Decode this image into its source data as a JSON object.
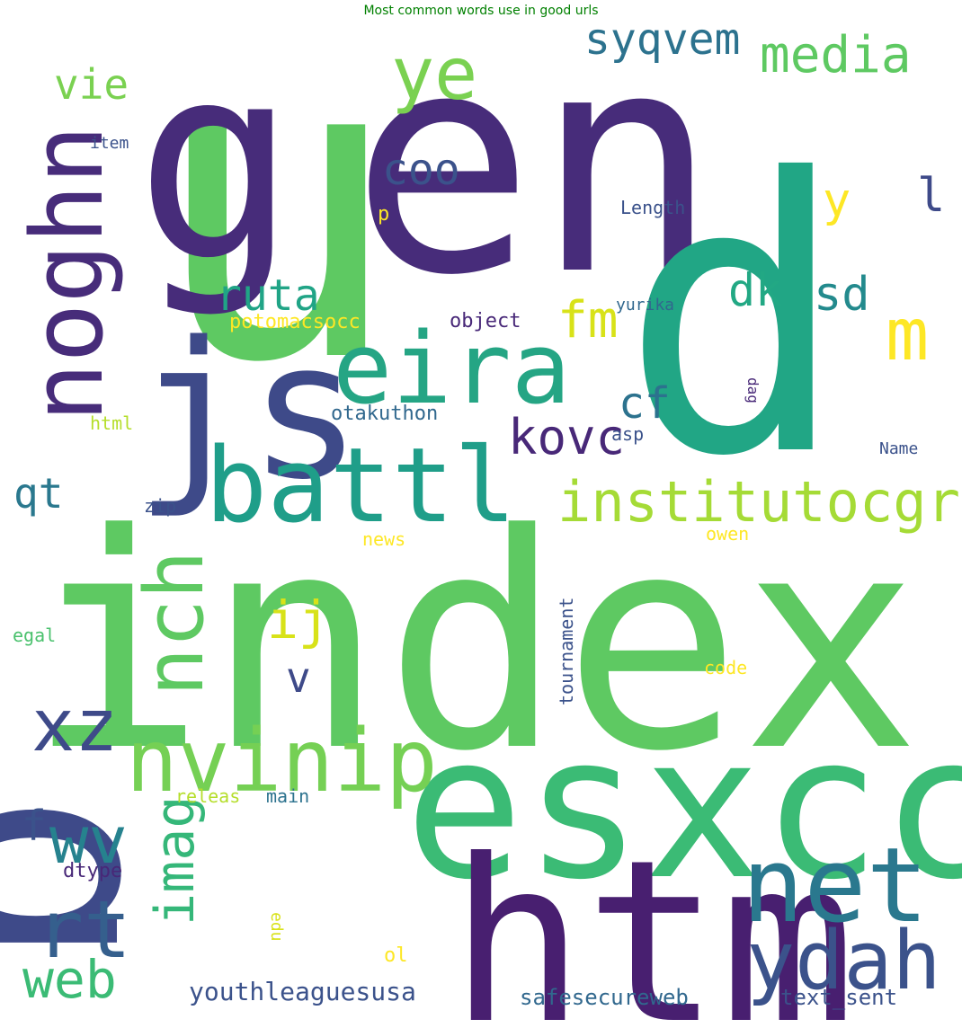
{
  "chart_data": {
    "type": "wordcloud",
    "title": "Most common words use in good urls",
    "background": "#ffffff",
    "palette": "viridis",
    "words": [
      {
        "text": "index",
        "color": "#5ec962"
      },
      {
        "text": "u",
        "color": "#5ec962"
      },
      {
        "text": "g",
        "color": "#472c7a"
      },
      {
        "text": "en",
        "color": "#472c7a"
      },
      {
        "text": "d",
        "color": "#21a685"
      },
      {
        "text": "b",
        "color": "#3e4a89"
      },
      {
        "text": "esxcc",
        "color": "#3bbb75"
      },
      {
        "text": "htm",
        "color": "#481f70"
      },
      {
        "text": "js",
        "color": "#3e4a89"
      },
      {
        "text": "eira",
        "color": "#25a584"
      },
      {
        "text": "battl",
        "color": "#1f9e89"
      },
      {
        "text": "noghn",
        "color": "#472c7a"
      },
      {
        "text": "net",
        "color": "#2a788e"
      },
      {
        "text": "ydah",
        "color": "#3b528b"
      },
      {
        "text": "nvinip",
        "color": "#75d054"
      },
      {
        "text": "institutocgr",
        "color": "#a5db36"
      },
      {
        "text": "ye",
        "color": "#7ad151"
      },
      {
        "text": "media",
        "color": "#5ec962"
      },
      {
        "text": "syqvem",
        "color": "#2c728e"
      },
      {
        "text": "nch",
        "color": "#5ec962"
      },
      {
        "text": "xz",
        "color": "#3e4a89"
      },
      {
        "text": "wv",
        "color": "#26828e"
      },
      {
        "text": "rt",
        "color": "#355f8d"
      },
      {
        "text": "web",
        "color": "#3bbb75"
      },
      {
        "text": "imag",
        "color": "#35b779"
      },
      {
        "text": "ruta",
        "color": "#20a486"
      },
      {
        "text": "coo",
        "color": "#3b528b"
      },
      {
        "text": "kovc",
        "color": "#482878"
      },
      {
        "text": "cf",
        "color": "#2c728e"
      },
      {
        "text": "m",
        "color": "#fde725"
      },
      {
        "text": "dk",
        "color": "#22a884"
      },
      {
        "text": "sd",
        "color": "#238a8d"
      },
      {
        "text": "fm",
        "color": "#d8e219"
      },
      {
        "text": "qt",
        "color": "#2a788e"
      },
      {
        "text": "vie",
        "color": "#7ad151"
      },
      {
        "text": "ij",
        "color": "#d8e219"
      },
      {
        "text": "v",
        "color": "#3e4a89"
      },
      {
        "text": "y",
        "color": "#fde725"
      },
      {
        "text": "l",
        "color": "#3e4a89"
      },
      {
        "text": "f",
        "color": "#3b528b"
      },
      {
        "text": "youthleaguesusa",
        "color": "#3b528b"
      },
      {
        "text": "safesecureweb",
        "color": "#31688e"
      },
      {
        "text": "text_sent",
        "color": "#3b528b"
      },
      {
        "text": "potomacsocc",
        "color": "#fde725"
      },
      {
        "text": "object",
        "color": "#482878"
      },
      {
        "text": "otakuthon",
        "color": "#31688e"
      },
      {
        "text": "yurika",
        "color": "#31688e"
      },
      {
        "text": "Length",
        "color": "#3b528b"
      },
      {
        "text": "item",
        "color": "#3b528b"
      },
      {
        "text": "html",
        "color": "#b5de2b"
      },
      {
        "text": "asp",
        "color": "#3b528b"
      },
      {
        "text": "Name",
        "color": "#3b528b"
      },
      {
        "text": "zip",
        "color": "#3b528b"
      },
      {
        "text": "news",
        "color": "#fde725"
      },
      {
        "text": "owen",
        "color": "#fde725"
      },
      {
        "text": "tournament",
        "color": "#3b528b"
      },
      {
        "text": "code",
        "color": "#fde725"
      },
      {
        "text": "egal",
        "color": "#4ac16d"
      },
      {
        "text": "releas",
        "color": "#b5de2b"
      },
      {
        "text": "main",
        "color": "#2c728e"
      },
      {
        "text": "dtype",
        "color": "#482878"
      },
      {
        "text": "edu",
        "color": "#d8e219"
      },
      {
        "text": "ol",
        "color": "#fde725"
      },
      {
        "text": "p",
        "color": "#fde725"
      },
      {
        "text": "dag",
        "color": "#482878"
      }
    ]
  }
}
